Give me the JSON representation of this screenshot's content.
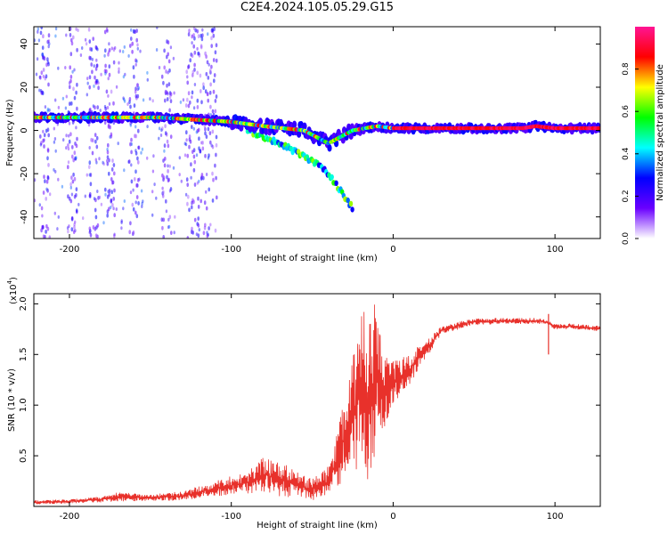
{
  "title": "C2E4.2024.105.05.29.G15",
  "chart_data": [
    {
      "type": "heatmap",
      "title": "C2E4.2024.105.05.29.G15",
      "xlabel": "Height of straight line (km)",
      "ylabel": "Frequency (Hz)",
      "xlim": [
        -222,
        128
      ],
      "ylim": [
        -50,
        48
      ],
      "x_ticks": [
        -200,
        -100,
        0,
        100
      ],
      "y_ticks": [
        -40,
        -20,
        0,
        20,
        40
      ],
      "x_tick_labels": [
        "-200",
        "-100",
        "0",
        "100"
      ],
      "y_tick_labels": [
        "-40",
        "-20",
        "0",
        "20",
        "40"
      ],
      "colorbar": {
        "label": "Normalized spectral amplitude",
        "range": [
          0,
          1
        ],
        "ticks": [
          0,
          0.2,
          0.4,
          0.6,
          0.8
        ],
        "tick_labels": [
          "0.0",
          "0.2",
          "0.4",
          "0.6",
          "0.8"
        ],
        "colormap": [
          "#ffffff",
          "#6a00ff",
          "#0000ff",
          "#00ffff",
          "#00ff00",
          "#ffff00",
          "#ff0000",
          "#ff1493"
        ]
      },
      "ridges": [
        {
          "name": "main",
          "points": [
            [
              -222,
              6
            ],
            [
              -145,
              6
            ],
            [
              -100,
              4
            ],
            [
              -80,
              2
            ],
            [
              -55,
              0
            ],
            [
              -40,
              -6
            ],
            [
              -25,
              0
            ],
            [
              -10,
              2
            ],
            [
              0,
              1
            ],
            [
              80,
              1
            ],
            [
              88,
              2
            ],
            [
              100,
              1
            ],
            [
              128,
              1
            ]
          ],
          "amplitude": 0.85
        },
        {
          "name": "descending",
          "points": [
            [
              -90,
              0
            ],
            [
              -70,
              -6
            ],
            [
              -50,
              -14
            ],
            [
              -40,
              -20
            ],
            [
              -25,
              -36
            ]
          ],
          "amplitude": 0.5
        },
        {
          "name": "noise-columns",
          "points": [
            [
              -215,
              0
            ],
            [
              -198,
              0
            ],
            [
              -185,
              0
            ],
            [
              -175,
              0
            ],
            [
              -160,
              0
            ],
            [
              -140,
              0
            ],
            [
              -125,
              0
            ],
            [
              -118,
              0
            ],
            [
              -112,
              0
            ]
          ],
          "amplitude": 0.25
        }
      ],
      "grid": false
    },
    {
      "type": "line",
      "xlabel": "Height of straight line (km)",
      "ylabel": "SNR (10 * v/v)",
      "y_scale_label": "(x10",
      "y_scale_exponent": "4",
      "y_scale_suffix": ")",
      "xlim": [
        -222,
        128
      ],
      "ylim": [
        0.0,
        2.1
      ],
      "x_ticks": [
        -200,
        -100,
        0,
        100
      ],
      "y_ticks": [
        0.5,
        1.0,
        1.5,
        2.0
      ],
      "x_tick_labels": [
        "-200",
        "-100",
        "0",
        "100"
      ],
      "y_tick_labels": [
        "0.5",
        "1.0",
        "1.5",
        "2.0"
      ],
      "color": "#e8312b",
      "envelope": [
        [
          -222,
          0.02,
          0.06
        ],
        [
          -200,
          0.03,
          0.07
        ],
        [
          -180,
          0.04,
          0.1
        ],
        [
          -170,
          0.05,
          0.14
        ],
        [
          -150,
          0.05,
          0.12
        ],
        [
          -130,
          0.06,
          0.15
        ],
        [
          -110,
          0.1,
          0.25
        ],
        [
          -90,
          0.12,
          0.35
        ],
        [
          -80,
          0.14,
          0.5
        ],
        [
          -70,
          0.1,
          0.45
        ],
        [
          -60,
          0.08,
          0.35
        ],
        [
          -50,
          0.05,
          0.28
        ],
        [
          -40,
          0.08,
          0.4
        ],
        [
          -35,
          0.15,
          0.7
        ],
        [
          -30,
          0.3,
          1.1
        ],
        [
          -25,
          0.35,
          1.45
        ],
        [
          -20,
          0.3,
          1.9
        ],
        [
          -15,
          0.2,
          2.0
        ],
        [
          -10,
          0.5,
          2.1
        ],
        [
          -5,
          0.8,
          1.5
        ],
        [
          0,
          1.0,
          1.45
        ],
        [
          10,
          1.2,
          1.5
        ],
        [
          20,
          1.45,
          1.65
        ],
        [
          30,
          1.7,
          1.78
        ],
        [
          50,
          1.79,
          1.86
        ],
        [
          70,
          1.8,
          1.86
        ],
        [
          90,
          1.8,
          1.86
        ],
        [
          95,
          1.8,
          1.84
        ],
        [
          100,
          1.74,
          1.8
        ],
        [
          110,
          1.75,
          1.81
        ],
        [
          128,
          1.73,
          1.78
        ]
      ],
      "spikes": [
        [
          96,
          1.5,
          1.9
        ]
      ]
    }
  ]
}
